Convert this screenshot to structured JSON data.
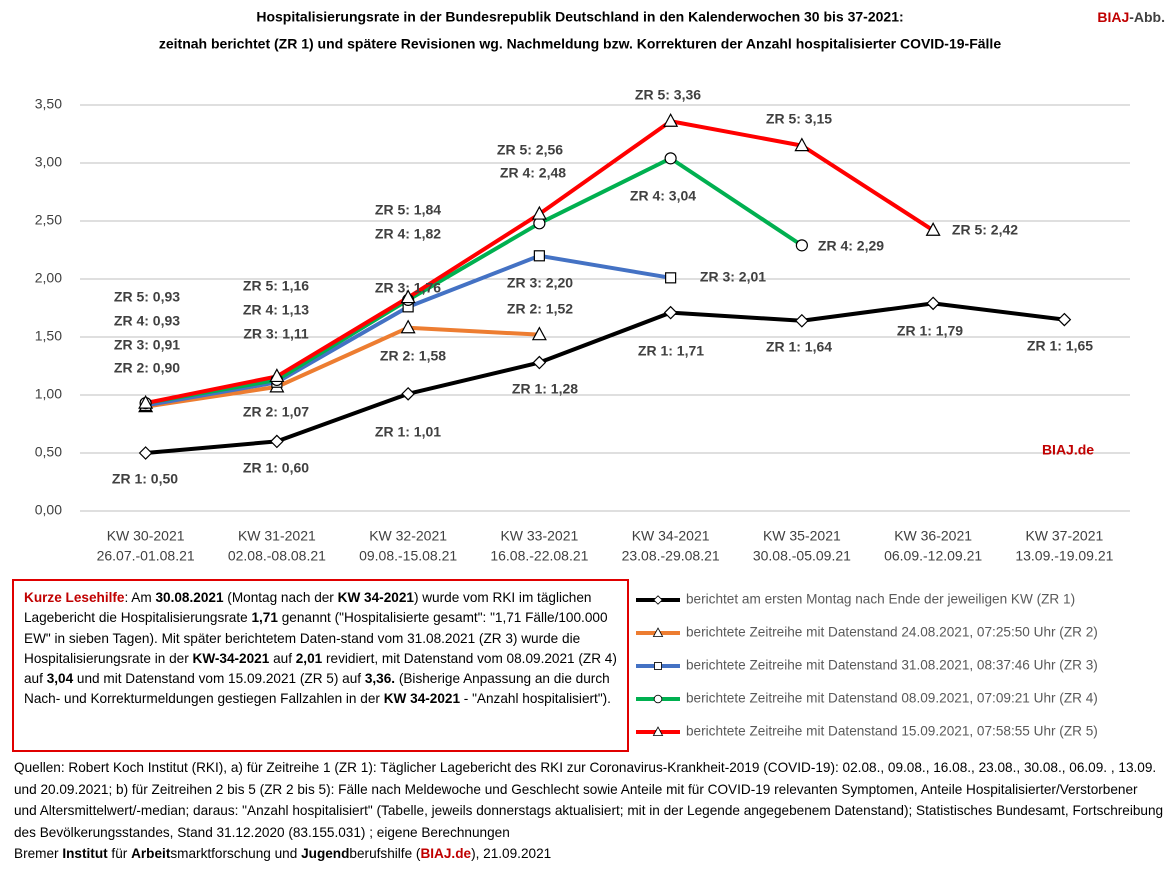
{
  "chart_data": {
    "type": "line",
    "title": "Hospitalisierungsrate in der Bundesrepublik Deutschland in den Kalenderwochen 30 bis 37-2021:",
    "subtitle": "zeitnah berichtet (ZR 1) und spätere Revisionen wg. Nachmeldung bzw. Korrekturen der Anzahl hospitalisierter COVID-19-Fälle",
    "badge": [
      {
        "text": "BIAJ",
        "bold": true,
        "color": "#c00000"
      },
      {
        "text": "-Abb.",
        "bold": true
      }
    ],
    "watermark": "BIAJ.de",
    "watermark_color": "#c00000",
    "categories": [
      "KW 30-2021",
      "KW 31-2021",
      "KW 32-2021",
      "KW 33-2021",
      "KW 34-2021",
      "KW 35-2021",
      "KW 36-2021",
      "KW 37-2021"
    ],
    "date_ranges": [
      "26.07.-01.08.21",
      "02.08.-08.08.21",
      "09.08.-15.08.21",
      "16.08.-22.08.21",
      "23.08.-29.08.21",
      "30.08.-05.09.21",
      "06.09.-12.09.21",
      "13.09.-19.09.21"
    ],
    "ylim": [
      0,
      3.5
    ],
    "yticks": [
      {
        "value": 0,
        "label": "0,00"
      },
      {
        "value": 0.5,
        "label": "0,50"
      },
      {
        "value": 1,
        "label": "1,00"
      },
      {
        "value": 1.5,
        "label": "1,50"
      },
      {
        "value": 2,
        "label": "2,00"
      },
      {
        "value": 2.5,
        "label": "2,50"
      },
      {
        "value": 3,
        "label": "3,00"
      },
      {
        "value": 3.5,
        "label": "3,50"
      }
    ],
    "grid": true,
    "series": [
      {
        "name": "berichtet am ersten Montag nach Ende der jeweiligen KW (ZR 1)",
        "color": "#000000",
        "marker": "diamond",
        "values": [
          0.5,
          0.6,
          1.01,
          1.28,
          1.71,
          1.64,
          1.79,
          1.65
        ],
        "value_labels": [
          "ZR 1: 0,50",
          "ZR 1: 0,60",
          "ZR 1: 1,01",
          "ZR 1: 1,28",
          "ZR 1: 1,71",
          "ZR 1: 1,64",
          "ZR 1: 1,79",
          "ZR 1: 1,65"
        ]
      },
      {
        "name": "berichtete Zeitreihe mit Datenstand 24.08.2021, 07:25:50 Uhr (ZR 2)",
        "color": "#ed7d31",
        "marker": "triangle",
        "values": [
          0.9,
          1.07,
          1.58,
          1.52,
          null,
          null,
          null,
          null
        ],
        "value_labels": [
          "ZR 2: 0,90",
          "ZR 2: 1,07",
          "ZR 2: 1,58",
          "ZR 2: 1,52",
          null,
          null,
          null,
          null
        ]
      },
      {
        "name": "berichtete Zeitreihe mit Datenstand 31.08.2021, 08:37:46 Uhr (ZR 3)",
        "color": "#4472c4",
        "marker": "square",
        "values": [
          0.91,
          1.11,
          1.76,
          2.2,
          2.01,
          null,
          null,
          null
        ],
        "value_labels": [
          "ZR 3: 0,91",
          "ZR 3: 1,11",
          "ZR 3: 1,76",
          "ZR 3: 2,20",
          "ZR 3: 2,01",
          null,
          null,
          null
        ]
      },
      {
        "name": "berichtete Zeitreihe mit Datenstand 08.09.2021, 07:09:21 Uhr (ZR 4)",
        "color": "#00b050",
        "marker": "circle",
        "values": [
          0.93,
          1.13,
          1.82,
          2.48,
          3.04,
          2.29,
          null,
          null
        ],
        "value_labels": [
          "ZR 4: 0,93",
          "ZR 4: 1,13",
          "ZR 4: 1,82",
          "ZR 4: 2,48",
          "ZR 4: 3,04",
          "ZR 4: 2,29",
          null,
          null
        ]
      },
      {
        "name": "berichtete Zeitreihe mit Datenstand 15.09.2021, 07:58:55 Uhr (ZR 5)",
        "color": "#ff0000",
        "marker": "triangle",
        "values": [
          0.93,
          1.16,
          1.84,
          2.56,
          3.36,
          3.15,
          2.42,
          null
        ],
        "value_labels": [
          "ZR 5: 0,93",
          "ZR 5: 1,16",
          "ZR 5: 1,84",
          "ZR 5: 2,56",
          "ZR 5: 3,36",
          "ZR 5: 3,15",
          "ZR 5: 2,42",
          null
        ]
      }
    ]
  },
  "reading_note": [
    {
      "text": "Kurze Lesehilfe",
      "bold": true,
      "color": "#c00000"
    },
    {
      "text": ": Am "
    },
    {
      "text": "30.08.2021",
      "bold": true
    },
    {
      "text": " (Montag nach der "
    },
    {
      "text": "KW 34-2021",
      "bold": true
    },
    {
      "text": ") wurde vom RKI im täglichen Lagebericht die Hospitalisierungsrate "
    },
    {
      "text": "1,71",
      "bold": true
    },
    {
      "text": " genannt (\"Hospitalisierte gesamt\": \"1,71 Fälle/100.000 EW\" in sieben Tagen). Mit später berichtetem Daten-stand vom 31.08.2021 (ZR 3) wurde die Hospitalisierungsrate in der "
    },
    {
      "text": "KW-34-2021",
      "bold": true
    },
    {
      "text": " auf "
    },
    {
      "text": "2,01",
      "bold": true
    },
    {
      "text": " revidiert, mit Datenstand vom 08.09.2021 (ZR 4) auf "
    },
    {
      "text": "3,04",
      "bold": true
    },
    {
      "text": " und mit Datenstand vom 15.09.2021 (ZR 5) auf "
    },
    {
      "text": "3,36.",
      "bold": true
    },
    {
      "text": " (Bisherige Anpassung an die durch Nach- und Korrekturmeldungen gestiegen Fallzahlen in der "
    },
    {
      "text": "KW 34-2021",
      "bold": true
    },
    {
      "text": " - \"Anzahl hospitalisiert\")."
    }
  ],
  "sources": "Quellen: Robert Koch Institut (RKI), a) für Zeitreihe 1 (ZR 1): Täglicher Lagebericht des RKI zur Coronavirus-Krankheit-2019 (COVID-19): 02.08., 09.08., 16.08., 23.08., 30.08., 06.09. , 13.09. und 20.09.2021; b) für Zeitreihen 2 bis 5 (ZR 2 bis 5): Fälle nach Meldewoche und Geschlecht sowie Anteile mit für COVID-19 relevanten Symptomen, Anteile Hospitalisierter/Verstorbener und Altersmittelwert/-median; daraus: \"Anzahl hospitalisiert\" (Tabelle, jeweils donnerstags aktualisiert; mit in der Legende angegebenem Datenstand); Statistisches Bundesamt, Fortschreibung des Bevölkerungsstandes, Stand 31.12.2020 (83.155.031) ; eigene Berechnungen",
  "footer": [
    {
      "text": "Bremer "
    },
    {
      "text": "Institut",
      "bold": true
    },
    {
      "text": " für "
    },
    {
      "text": "Arbeit",
      "bold": true
    },
    {
      "text": "smarktforschung und "
    },
    {
      "text": "Jugend",
      "bold": true
    },
    {
      "text": "berufshilfe ("
    },
    {
      "text": "BIAJ.de",
      "bold": true,
      "color": "#c00000"
    },
    {
      "text": "), 21.09.2021"
    }
  ]
}
